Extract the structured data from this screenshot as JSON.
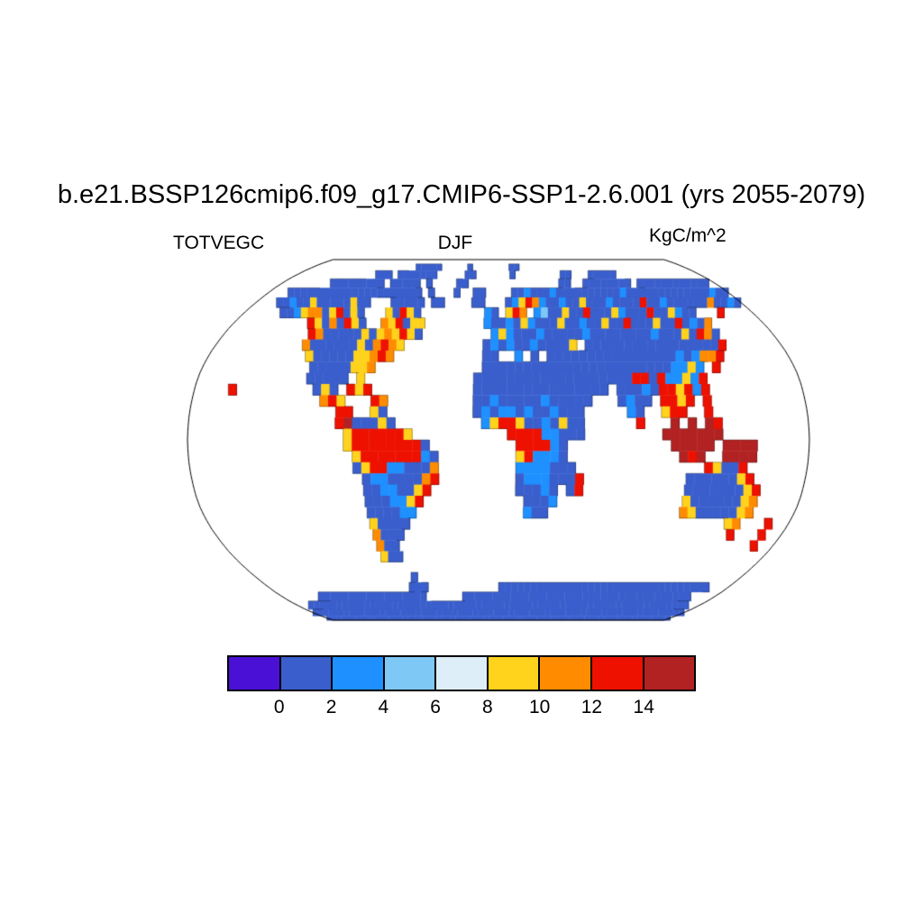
{
  "figure": {
    "title": "b.e21.BSSP126cmip6.f09_g17.CMIP6-SSP1-2.6.001 (yrs 2055-2079)",
    "variable_label": "TOTVEGC",
    "season_label": "DJF",
    "units_label": "KgC/m^2"
  },
  "chart_data": {
    "type": "heatmap",
    "projection": "robinson",
    "title": "b.e21.BSSP126cmip6.f09_g17.CMIP6-SSP1-2.6.001 (yrs 2055-2079)",
    "variable": "TOTVEGC",
    "season": "DJF",
    "units": "KgC/m^2",
    "legend_position": "bottom",
    "colorbar": {
      "tick_labels": [
        "0",
        "2",
        "4",
        "6",
        "8",
        "10",
        "12",
        "14"
      ],
      "bin_edges": [
        0,
        2,
        4,
        6,
        8,
        10,
        12,
        14
      ],
      "colors": [
        "#4a10d6",
        "#3a5fcd",
        "#1e90ff",
        "#7ec8f5",
        "#ddeef9",
        "#ffd21c",
        "#ff8c00",
        "#ee1100",
        "#b22222"
      ]
    },
    "grid": {
      "rows": 36,
      "cols": 72,
      "cell_deg": 5,
      "lat_start": 90,
      "lon_start": -180,
      "ocean_char": ".",
      "palette": {
        "1": "#4a10d6",
        "b": "#3a5fcd",
        "c": "#1e90ff",
        "d": "#7ec8f5",
        "e": "#ddeef9",
        "y": "#ffd21c",
        "o": "#ff8c00",
        "r": "#ee1100",
        "m": "#b22222"
      },
      "value_bins_kgC_m2": {
        "1": "<0",
        "b": "0-2",
        "c": "2-4",
        "d": "4-6",
        "e": "6-8",
        "y": "8-10",
        "o": "10-12",
        "r": "12-14",
        "m": ">14"
      },
      "rows_segments": [
        [],
        [
          [
            20,
            "bbbbb"
          ],
          [
            30,
            "b"
          ],
          [
            38,
            "bb"
          ]
        ],
        [
          [
            14,
            "bbb"
          ],
          [
            18,
            "bbbbb"
          ],
          [
            23,
            "bb"
          ],
          [
            30,
            "bb"
          ],
          [
            38,
            "b"
          ],
          [
            47,
            "bb"
          ],
          [
            52,
            "bbbbb"
          ]
        ],
        [
          [
            8,
            "bbbb"
          ],
          [
            12,
            "bbbbb"
          ],
          [
            18,
            "bbbbb"
          ],
          [
            24,
            "b"
          ],
          [
            29,
            "bb"
          ],
          [
            46,
            "bb"
          ],
          [
            50,
            "b",
            8
          ],
          [
            59,
            "b",
            12
          ]
        ],
        [
          [
            3,
            "b",
            9
          ],
          [
            12,
            "b",
            12
          ],
          [
            25,
            "b"
          ],
          [
            29,
            "b"
          ],
          [
            32,
            "bb"
          ],
          [
            38,
            "bbcbb"
          ],
          [
            43,
            "bcbbbbbbbbbbcbbbbbbbbbbbbbcbb"
          ]
        ],
        [
          [
            3,
            "bbcbbybb"
          ],
          [
            11,
            "bbbybb"
          ],
          [
            20,
            "bbbbb"
          ],
          [
            26,
            "bb"
          ],
          [
            32,
            "bb"
          ],
          [
            37,
            "bcyrocb"
          ],
          [
            44,
            "bcbbybbbcbbbbrbbcbbbbbbobbcb"
          ]
        ],
        [
          [
            5,
            "bbcyo"
          ],
          [
            10,
            "obyrbyb"
          ],
          [
            20,
            "ybryb"
          ],
          [
            34,
            "cb"
          ],
          [
            37,
            "yro"
          ],
          [
            41,
            "cd"
          ],
          [
            43,
            "bbybbrbbbycbbbrbbycbb"
          ],
          [
            67,
            "r"
          ]
        ],
        [
          [
            10,
            "rybobryb"
          ],
          [
            20,
            "oyrbyy"
          ],
          [
            34,
            "cb"
          ],
          [
            36,
            "bcbycbbbyb"
          ],
          [
            46,
            "bcbbybbrbbbybbrbcb"
          ],
          [
            64,
            "o"
          ]
        ],
        [
          [
            11,
            "robbbbbybyoyryb"
          ],
          [
            35,
            "cycbbbcbbb"
          ],
          [
            45,
            "bbcbbbbbbbbcb"
          ],
          [
            58,
            "bbybrob"
          ]
        ],
        [
          [
            11,
            "obbbbbbyboroy"
          ],
          [
            34,
            "bc"
          ],
          [
            36,
            "bcbbcbbbb"
          ],
          [
            45,
            "y"
          ],
          [
            47,
            "b",
            11
          ],
          [
            58,
            "b",
            6
          ],
          [
            64,
            "r"
          ]
        ],
        [
          [
            12,
            "ybbbbbyyoro"
          ],
          [
            34,
            "bb"
          ],
          [
            38,
            "c"
          ],
          [
            40,
            "b"
          ],
          [
            42,
            "bbb"
          ],
          [
            45,
            "bbbb"
          ],
          [
            49,
            "bb"
          ],
          [
            51,
            "b",
            7
          ],
          [
            58,
            "cbc"
          ],
          [
            61,
            "oor"
          ]
        ],
        [
          [
            13,
            "bbbbbyyo"
          ],
          [
            34,
            "bb"
          ],
          [
            36,
            "b",
            8
          ],
          [
            44,
            "bbbb"
          ],
          [
            48,
            "bbb"
          ],
          [
            51,
            "bbbbb"
          ],
          [
            56,
            "bccyc"
          ],
          [
            62,
            "r"
          ]
        ],
        [
          [
            13,
            "bbbbb"
          ],
          [
            19,
            "y"
          ],
          [
            33,
            "b",
            11
          ],
          [
            44,
            "bbbbb"
          ],
          [
            49,
            "bb"
          ],
          [
            51,
            "brrb"
          ],
          [
            55,
            "rc"
          ],
          [
            57,
            "cycr"
          ]
        ],
        [
          [
            4,
            "r"
          ],
          [
            14,
            "byb"
          ],
          [
            18,
            "ryr"
          ],
          [
            33,
            "b",
            11
          ],
          [
            44,
            "bbbbb"
          ],
          [
            50,
            "bbbcb"
          ],
          [
            55,
            "rryrcr"
          ]
        ],
        [
          [
            15,
            "ory"
          ],
          [
            21,
            "ro"
          ],
          [
            33,
            "bbcbbbbbcbb"
          ],
          [
            44,
            "bbb"
          ],
          [
            50,
            "bcbb"
          ],
          [
            55,
            "rryr"
          ],
          [
            60,
            "r"
          ]
        ],
        [
          [
            17,
            "rr"
          ],
          [
            21,
            "yb"
          ],
          [
            33,
            "bcbccbcbbcbb"
          ],
          [
            45,
            "b"
          ],
          [
            51,
            "cb"
          ],
          [
            55,
            "yrr"
          ],
          [
            60,
            "r"
          ]
        ],
        [
          [
            17,
            "rmbbbyb"
          ],
          [
            34,
            "cyrrybbcb"
          ],
          [
            43,
            "yb"
          ],
          [
            45,
            "b"
          ],
          [
            52,
            "r"
          ],
          [
            56,
            "m"
          ],
          [
            58,
            "m"
          ],
          [
            60,
            "mr"
          ]
        ],
        [
          [
            18,
            "yrrrrrry"
          ],
          [
            37,
            "rrrrcc"
          ],
          [
            43,
            "bbb"
          ],
          [
            55,
            "m",
            7
          ]
        ],
        [
          [
            18,
            "yrrrrrrrrb"
          ],
          [
            38,
            "rrrr"
          ],
          [
            42,
            "cb"
          ],
          [
            56,
            "mmmmm"
          ],
          [
            62,
            "mmmm"
          ]
        ],
        [
          [
            19,
            "yrrrrrrrcb"
          ],
          [
            38,
            "yrcccb"
          ],
          [
            57,
            "mrm"
          ],
          [
            62,
            "mmmm"
          ]
        ],
        [
          [
            19,
            "byrrccbbbo"
          ],
          [
            38,
            "ccccbb"
          ],
          [
            44,
            "b"
          ],
          [
            60,
            "rybbr"
          ]
        ],
        [
          [
            20,
            "bccbbbbor"
          ],
          [
            38,
            "bcccbb"
          ],
          [
            44,
            "br"
          ],
          [
            58,
            "bbbbbbyr"
          ]
        ],
        [
          [
            20,
            "bbccbbyr"
          ],
          [
            38,
            "bbbcb"
          ],
          [
            44,
            "br"
          ],
          [
            58,
            "bbbbbbbyr"
          ]
        ],
        [
          [
            20,
            "bbbccyr"
          ],
          [
            39,
            "bbbc"
          ],
          [
            58,
            "ybbbbbbyo"
          ]
        ],
        [
          [
            20,
            "bbbbcc"
          ],
          [
            39,
            "cbb"
          ],
          [
            58,
            "oybbbbbyo"
          ]
        ],
        [
          [
            20,
            "ybbbb"
          ],
          [
            64,
            "yo"
          ],
          [
            69,
            "r"
          ]
        ],
        [
          [
            20,
            "obbb"
          ],
          [
            65,
            "r"
          ],
          [
            69,
            "r"
          ]
        ],
        [
          [
            20,
            "obb"
          ],
          [
            69,
            "r"
          ]
        ],
        [
          [
            20,
            "ybb"
          ]
        ],
        [],
        [
          [
            23,
            "b"
          ]
        ],
        [
          [
            22,
            "bbb"
          ],
          [
            36,
            "b",
            33
          ]
        ],
        [
          [
            6,
            "b",
            18
          ],
          [
            30,
            "b",
            38
          ]
        ],
        [
          [
            2,
            "b",
            68
          ]
        ],
        [
          [
            0,
            "b",
            72
          ]
        ],
        [
          [
            0,
            "b",
            72
          ]
        ]
      ]
    }
  }
}
